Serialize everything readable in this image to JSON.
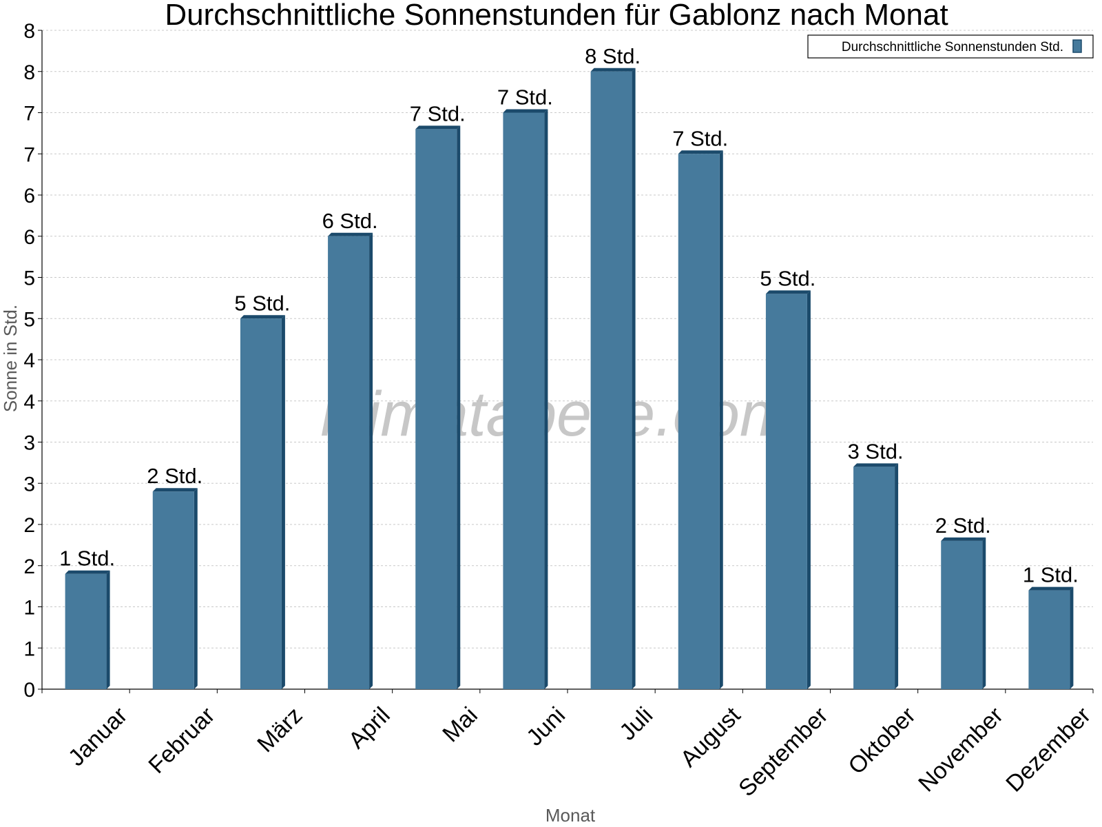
{
  "chart_data": {
    "type": "bar",
    "title": "Durchschnittliche Sonnenstunden für Gablonz nach Monat",
    "xlabel": "Monat",
    "ylabel": "Sonne in Std.",
    "ylim": [
      0,
      8
    ],
    "yticks": [
      "0",
      "1",
      "1",
      "2",
      "2",
      "3",
      "3",
      "4",
      "4",
      "5",
      "5",
      "6",
      "6",
      "7",
      "7",
      "8",
      "8"
    ],
    "grid": true,
    "legend_position": "top-right",
    "categories": [
      "Januar",
      "Februar",
      "März",
      "April",
      "Mai",
      "Juni",
      "Juli",
      "August",
      "September",
      "Oktober",
      "November",
      "Dezember"
    ],
    "series": [
      {
        "name": "Durchschnittliche Sonnenstunden Std.",
        "color": "#467a9c",
        "values": [
          1.4,
          2.4,
          4.5,
          5.5,
          6.8,
          7.0,
          7.5,
          6.5,
          4.8,
          2.7,
          1.8,
          1.2
        ],
        "labels": [
          "1 Std.",
          "2 Std.",
          "5 Std.",
          "6 Std.",
          "7 Std.",
          "7 Std.",
          "8 Std.",
          "7 Std.",
          "5 Std.",
          "3 Std.",
          "2 Std.",
          "1 Std."
        ]
      }
    ],
    "watermark": "klimatabelle.com"
  }
}
